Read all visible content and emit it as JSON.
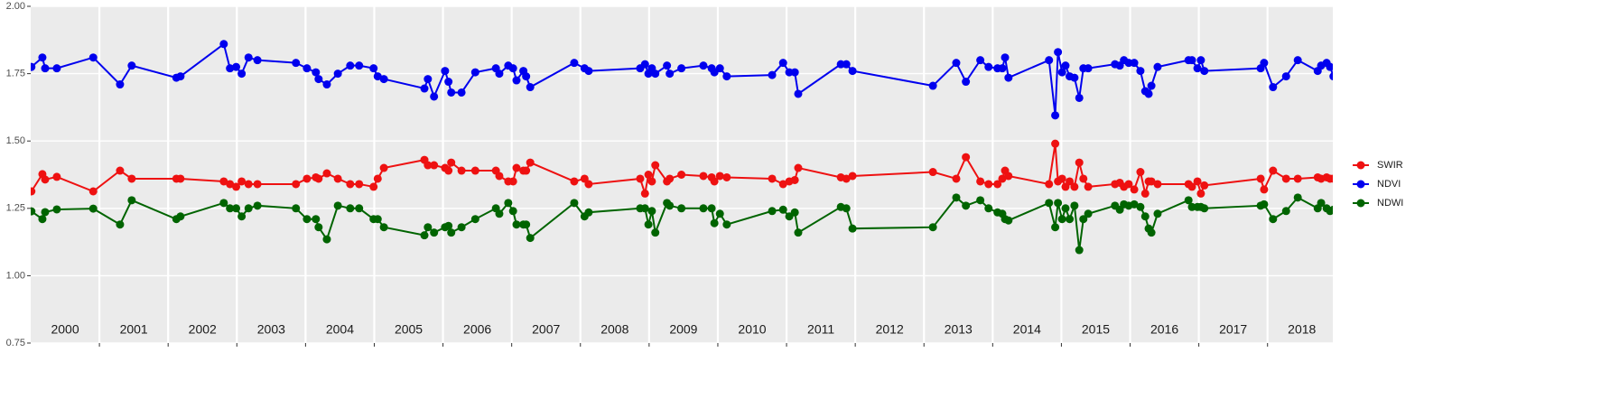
{
  "chart_data": {
    "type": "line",
    "x": [
      2000.01,
      2000.17,
      2000.21,
      2000.38,
      2000.91,
      2001.3,
      2001.47,
      2002.12,
      2002.18,
      2002.81,
      2002.9,
      2002.99,
      2003.07,
      2003.17,
      2003.3,
      2003.86,
      2004.02,
      2004.15,
      2004.19,
      2004.31,
      2004.47,
      2004.65,
      2004.78,
      2004.99,
      2005.05,
      2005.14,
      2005.73,
      2005.78,
      2005.87,
      2006.03,
      2006.08,
      2006.12,
      2006.27,
      2006.47,
      2006.77,
      2006.82,
      2006.95,
      2007.02,
      2007.07,
      2007.17,
      2007.21,
      2007.27,
      2007.91,
      2008.06,
      2008.12,
      2008.87,
      2008.94,
      2008.99,
      2009.04,
      2009.09,
      2009.26,
      2009.3,
      2009.47,
      2009.79,
      2009.91,
      2009.95,
      2010.03,
      2010.13,
      2010.79,
      2010.95,
      2011.04,
      2011.12,
      2011.17,
      2011.79,
      2011.87,
      2011.96,
      2013.13,
      2013.47,
      2013.61,
      2013.82,
      2013.94,
      2014.07,
      2014.14,
      2014.18,
      2014.23,
      2014.82,
      2014.91,
      2014.95,
      2015.01,
      2015.06,
      2015.12,
      2015.19,
      2015.26,
      2015.32,
      2015.39,
      2015.78,
      2015.85,
      2015.91,
      2015.98,
      2016.06,
      2016.15,
      2016.22,
      2016.27,
      2016.31,
      2016.4,
      2016.85,
      2016.9,
      2016.98,
      2017.03,
      2017.08,
      2017.9,
      2017.95,
      2018.08,
      2018.27,
      2018.44,
      2018.73,
      2018.78,
      2018.86,
      2018.91,
      2018.96
    ],
    "series": [
      {
        "name": "SWIR",
        "color": "#ee1111",
        "values": [
          1.313,
          1.377,
          1.357,
          1.367,
          1.313,
          1.39,
          1.36,
          1.36,
          1.36,
          1.35,
          1.34,
          1.33,
          1.35,
          1.34,
          1.34,
          1.34,
          1.36,
          1.365,
          1.36,
          1.38,
          1.36,
          1.34,
          1.34,
          1.33,
          1.36,
          1.4,
          1.43,
          1.41,
          1.41,
          1.4,
          1.39,
          1.42,
          1.39,
          1.39,
          1.39,
          1.37,
          1.35,
          1.35,
          1.4,
          1.39,
          1.39,
          1.42,
          1.35,
          1.36,
          1.34,
          1.36,
          1.305,
          1.375,
          1.35,
          1.41,
          1.35,
          1.36,
          1.375,
          1.37,
          1.365,
          1.35,
          1.37,
          1.365,
          1.36,
          1.34,
          1.35,
          1.355,
          1.4,
          1.365,
          1.36,
          1.37,
          1.385,
          1.36,
          1.44,
          1.35,
          1.34,
          1.34,
          1.36,
          1.39,
          1.37,
          1.34,
          1.49,
          1.35,
          1.36,
          1.33,
          1.35,
          1.33,
          1.42,
          1.36,
          1.33,
          1.34,
          1.345,
          1.33,
          1.34,
          1.32,
          1.385,
          1.305,
          1.35,
          1.35,
          1.34,
          1.34,
          1.33,
          1.35,
          1.305,
          1.335,
          1.36,
          1.32,
          1.39,
          1.36,
          1.36,
          1.365,
          1.36,
          1.365,
          1.36,
          1.36
        ]
      },
      {
        "name": "NDVI",
        "color": "#0000ee",
        "values": [
          1.775,
          1.81,
          1.77,
          1.77,
          1.81,
          1.71,
          1.78,
          1.735,
          1.74,
          1.86,
          1.77,
          1.775,
          1.75,
          1.81,
          1.8,
          1.79,
          1.77,
          1.755,
          1.73,
          1.71,
          1.75,
          1.78,
          1.78,
          1.77,
          1.74,
          1.73,
          1.695,
          1.73,
          1.665,
          1.76,
          1.72,
          1.68,
          1.68,
          1.755,
          1.77,
          1.75,
          1.78,
          1.77,
          1.725,
          1.76,
          1.74,
          1.7,
          1.79,
          1.77,
          1.76,
          1.77,
          1.785,
          1.75,
          1.77,
          1.75,
          1.78,
          1.75,
          1.77,
          1.78,
          1.77,
          1.755,
          1.77,
          1.74,
          1.745,
          1.79,
          1.755,
          1.755,
          1.675,
          1.785,
          1.785,
          1.76,
          1.705,
          1.79,
          1.72,
          1.8,
          1.775,
          1.77,
          1.77,
          1.81,
          1.735,
          1.8,
          1.595,
          1.83,
          1.755,
          1.78,
          1.74,
          1.735,
          1.66,
          1.77,
          1.77,
          1.785,
          1.78,
          1.8,
          1.79,
          1.79,
          1.76,
          1.685,
          1.675,
          1.705,
          1.775,
          1.8,
          1.8,
          1.77,
          1.8,
          1.76,
          1.77,
          1.79,
          1.7,
          1.74,
          1.8,
          1.76,
          1.78,
          1.79,
          1.775,
          1.74
        ]
      },
      {
        "name": "NDWI",
        "color": "#006400",
        "values": [
          1.239,
          1.21,
          1.236,
          1.246,
          1.249,
          1.19,
          1.28,
          1.21,
          1.22,
          1.27,
          1.25,
          1.25,
          1.22,
          1.25,
          1.26,
          1.25,
          1.21,
          1.21,
          1.18,
          1.135,
          1.26,
          1.25,
          1.25,
          1.21,
          1.21,
          1.18,
          1.15,
          1.18,
          1.16,
          1.18,
          1.185,
          1.16,
          1.18,
          1.21,
          1.25,
          1.23,
          1.27,
          1.24,
          1.19,
          1.19,
          1.19,
          1.14,
          1.27,
          1.22,
          1.235,
          1.25,
          1.25,
          1.19,
          1.24,
          1.16,
          1.27,
          1.26,
          1.25,
          1.25,
          1.25,
          1.195,
          1.23,
          1.19,
          1.24,
          1.245,
          1.22,
          1.235,
          1.16,
          1.255,
          1.25,
          1.175,
          1.18,
          1.29,
          1.26,
          1.28,
          1.25,
          1.235,
          1.23,
          1.21,
          1.205,
          1.27,
          1.18,
          1.27,
          1.21,
          1.25,
          1.21,
          1.26,
          1.095,
          1.21,
          1.23,
          1.26,
          1.245,
          1.265,
          1.26,
          1.265,
          1.255,
          1.22,
          1.175,
          1.16,
          1.23,
          1.28,
          1.255,
          1.255,
          1.255,
          1.25,
          1.26,
          1.265,
          1.21,
          1.24,
          1.29,
          1.25,
          1.27,
          1.25,
          1.24,
          1.245
        ]
      }
    ],
    "xlim": [
      2000,
      2018.95
    ],
    "xticks": [
      2001,
      2002,
      2003,
      2004,
      2005,
      2006,
      2007,
      2008,
      2009,
      2010,
      2011,
      2012,
      2013,
      2014,
      2015,
      2016,
      2017,
      2018
    ],
    "year_labels": [
      {
        "x": 2000.5,
        "text": "2000"
      },
      {
        "x": 2001.5,
        "text": "2001"
      },
      {
        "x": 2002.5,
        "text": "2002"
      },
      {
        "x": 2003.5,
        "text": "2003"
      },
      {
        "x": 2004.5,
        "text": "2004"
      },
      {
        "x": 2005.5,
        "text": "2005"
      },
      {
        "x": 2006.5,
        "text": "2006"
      },
      {
        "x": 2007.5,
        "text": "2007"
      },
      {
        "x": 2008.5,
        "text": "2008"
      },
      {
        "x": 2009.5,
        "text": "2009"
      },
      {
        "x": 2010.5,
        "text": "2010"
      },
      {
        "x": 2011.5,
        "text": "2011"
      },
      {
        "x": 2012.5,
        "text": "2012"
      },
      {
        "x": 2013.5,
        "text": "2013"
      },
      {
        "x": 2014.5,
        "text": "2014"
      },
      {
        "x": 2015.5,
        "text": "2015"
      },
      {
        "x": 2016.5,
        "text": "2016"
      },
      {
        "x": 2017.5,
        "text": "2017"
      },
      {
        "x": 2018.5,
        "text": "2018"
      }
    ],
    "ylim": [
      0.75,
      2.0
    ],
    "yticks": [
      0.75,
      {
        "value": 1.0,
        "label": "1.00"
      },
      1.25,
      {
        "value": 1.5,
        "label": "1.50"
      },
      1.75,
      {
        "value": 2.0,
        "label": "2.00"
      }
    ],
    "grid": true,
    "legend": "right"
  }
}
